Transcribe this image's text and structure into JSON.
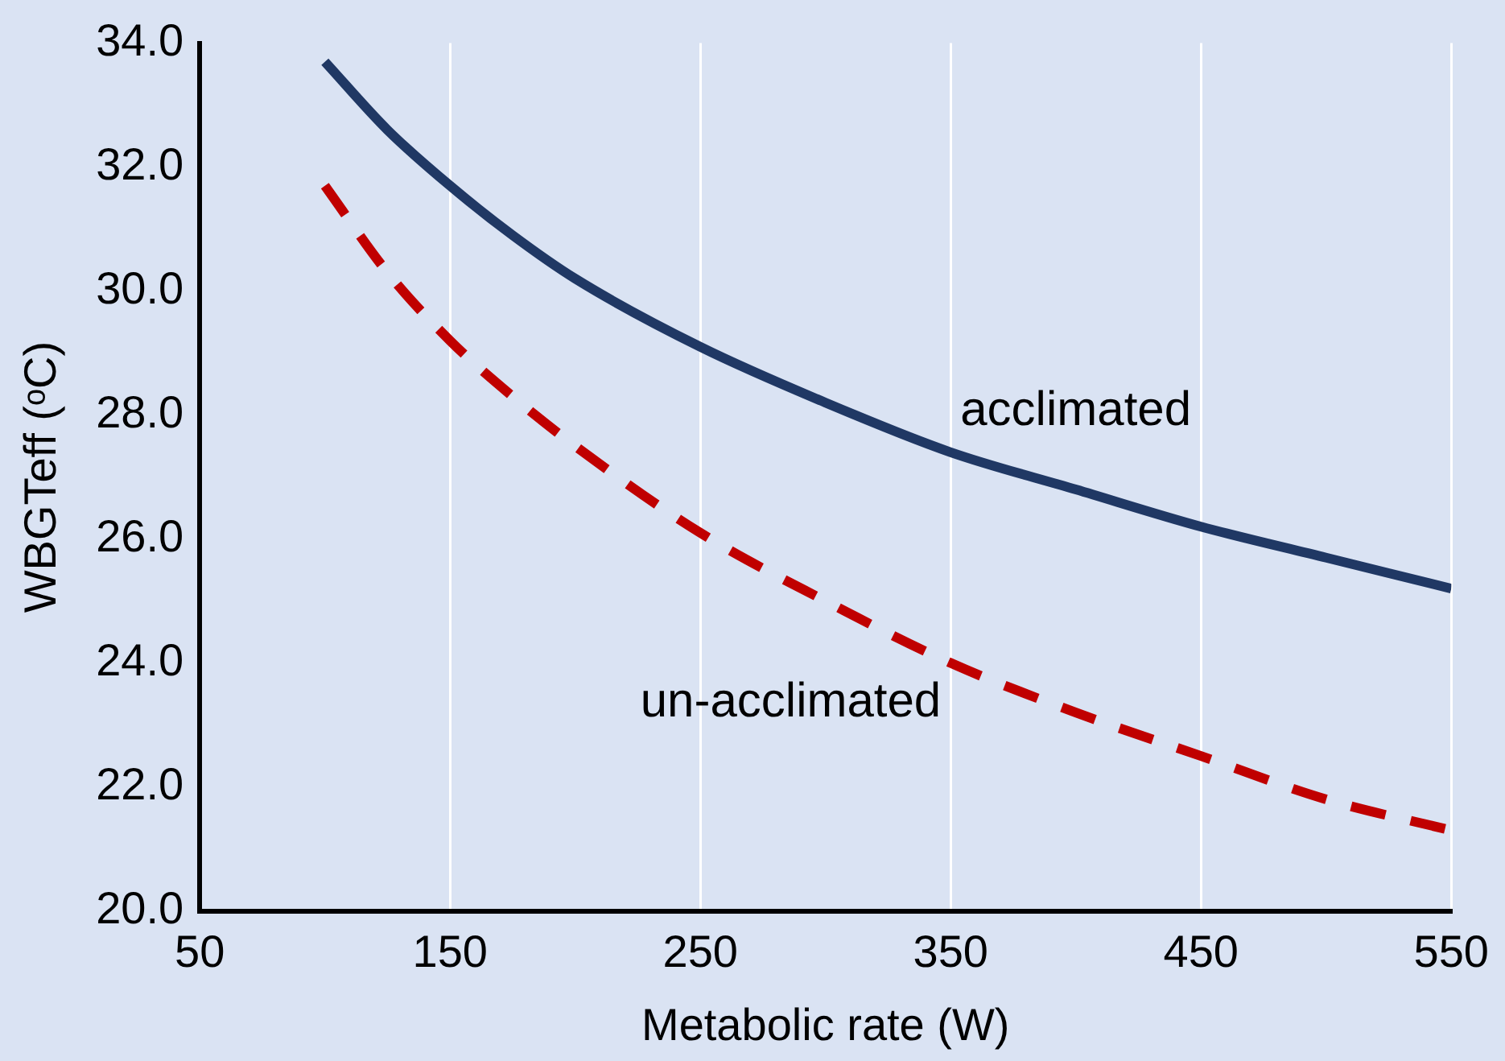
{
  "chart_data": {
    "type": "line",
    "xlabel": "Metabolic rate (W)",
    "ylabel": "WBGTeff (ᵒC)",
    "x": [
      100,
      125,
      150,
      175,
      200,
      250,
      300,
      350,
      400,
      450,
      500,
      550
    ],
    "series": [
      {
        "name": "acclimated",
        "color": "#203864",
        "line_style": "solid",
        "values": [
          33.7,
          32.6,
          31.7,
          30.9,
          30.2,
          29.1,
          28.2,
          27.4,
          26.8,
          26.2,
          25.7,
          25.2
        ]
      },
      {
        "name": "un-acclimated",
        "color": "#c00000",
        "line_style": "dashed",
        "values": [
          31.7,
          30.3,
          29.2,
          28.3,
          27.5,
          26.1,
          25.0,
          24.0,
          23.2,
          22.5,
          21.8,
          21.3
        ]
      }
    ],
    "xlim": [
      50,
      550
    ],
    "xticks": [
      50,
      150,
      250,
      350,
      450,
      550
    ],
    "ylim": [
      20,
      34
    ],
    "yticks": [
      {
        "value": 20,
        "label": "20.0"
      },
      {
        "value": 22,
        "label": "22.0"
      },
      {
        "value": 24,
        "label": "24.0"
      },
      {
        "value": 26,
        "label": "26.0"
      },
      {
        "value": 28,
        "label": "28.0"
      },
      {
        "value": 30,
        "label": "30.0"
      },
      {
        "value": 32,
        "label": "32.0"
      },
      {
        "value": 34,
        "label": "34.0"
      }
    ],
    "grid": "x",
    "legend": false,
    "marker": "none"
  }
}
